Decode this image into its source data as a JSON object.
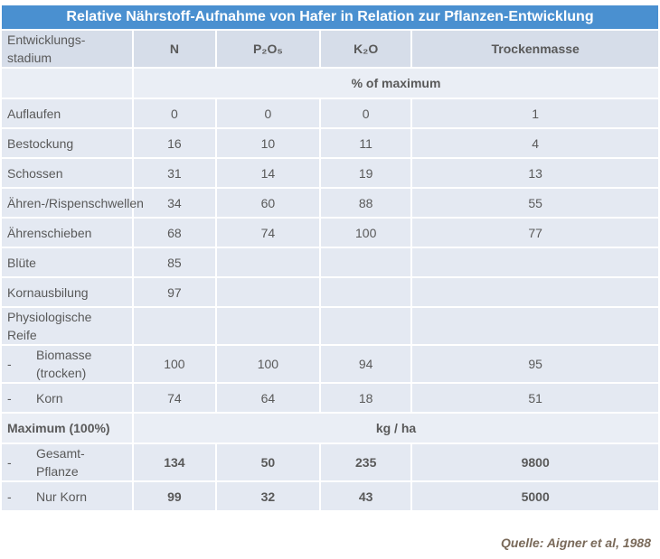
{
  "table": {
    "title": "Relative Nährstoff-Aufnahme von Hafer in Relation zur Pflanzen-Entwicklung",
    "header": [
      "Entwicklungs-stadium",
      "N",
      "P₂O₅",
      "K₂O",
      "Trockenmasse"
    ],
    "unit_percent": "% of maximum",
    "rows": [
      {
        "label": "Auflaufen",
        "cells": [
          0,
          0,
          0,
          1
        ]
      },
      {
        "label": "Bestockung",
        "cells": [
          16,
          10,
          11,
          4
        ]
      },
      {
        "label": "Schossen",
        "cells": [
          31,
          14,
          19,
          13
        ]
      },
      {
        "label": "Ähren-/Rispenschwellen",
        "cells": [
          34,
          60,
          88,
          55
        ]
      },
      {
        "label": "Ährenschieben",
        "cells": [
          68,
          74,
          100,
          77
        ]
      },
      {
        "label": "Blüte",
        "cells": [
          85,
          null,
          null,
          null
        ]
      },
      {
        "label": "Kornausbilung",
        "cells": [
          97,
          null,
          null,
          null
        ]
      },
      {
        "label": "Physiologische Reife",
        "cells": [
          null,
          null,
          null,
          null
        ]
      },
      {
        "dash": "-",
        "label": "Biomasse (trocken)",
        "cells": [
          100,
          100,
          94,
          95
        ]
      },
      {
        "dash": "-",
        "label": "Korn",
        "cells": [
          74,
          64,
          18,
          51
        ]
      }
    ],
    "maximum_label": "Maximum (100%)",
    "unit_kg": "kg / ha",
    "max_rows": [
      {
        "dash": "-",
        "label": "Gesamt-Pflanze",
        "cells": [
          134,
          50,
          235,
          9800
        ]
      },
      {
        "dash": "-",
        "label": "Nur Korn",
        "cells": [
          99,
          32,
          43,
          5000
        ]
      }
    ],
    "source": "Quelle: Aigner et al, 1988"
  }
}
